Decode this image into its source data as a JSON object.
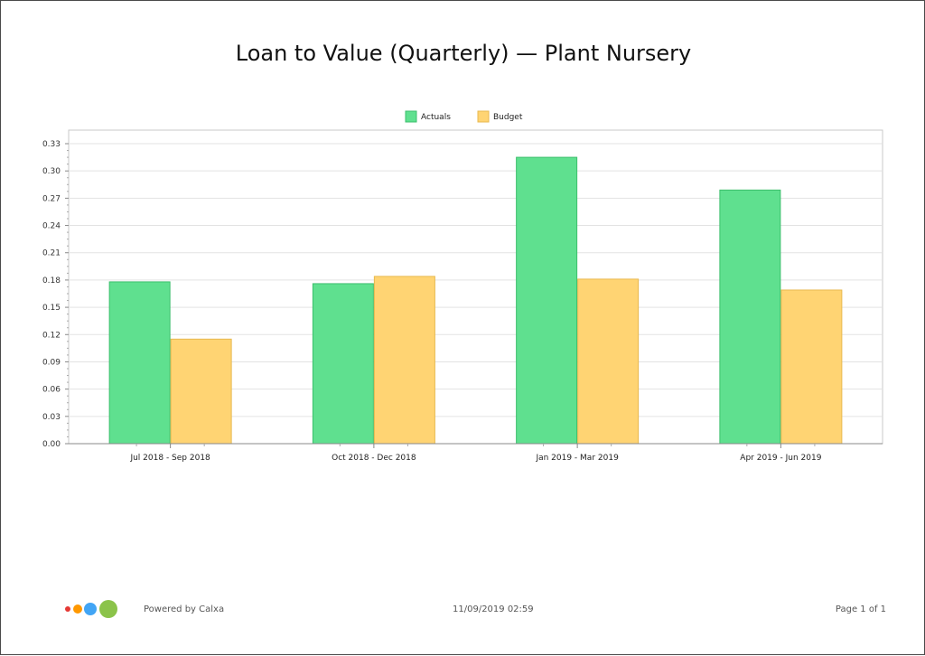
{
  "chart_data": {
    "type": "bar",
    "title": "Loan to Value (Quarterly) — Plant Nursery",
    "categories": [
      "Jul 2018 - Sep 2018",
      "Oct 2018 - Dec 2018",
      "Jan 2019 - Mar 2019",
      "Apr 2019 - Jun 2019"
    ],
    "series": [
      {
        "name": "Actuals",
        "values": [
          0.178,
          0.176,
          0.315,
          0.279
        ],
        "color": "#5fe08f"
      },
      {
        "name": "Budget",
        "values": [
          0.115,
          0.184,
          0.181,
          0.169
        ],
        "color": "#ffd473"
      }
    ],
    "ylim": [
      0,
      0.33
    ],
    "yticks": [
      "0.00",
      "0.03",
      "0.06",
      "0.09",
      "0.12",
      "0.15",
      "0.18",
      "0.21",
      "0.24",
      "0.27",
      "0.30",
      "0.33"
    ],
    "xlabel": "",
    "ylabel": "",
    "grid": true,
    "legend_position": "top-center"
  },
  "footer": {
    "powered_by": "Powered by Calxa",
    "timestamp": "11/09/2019 02:59",
    "page": "Page 1 of 1",
    "logo_colors": [
      "#e53935",
      "#ff9800",
      "#42a5f5",
      "#8bc34a"
    ]
  }
}
